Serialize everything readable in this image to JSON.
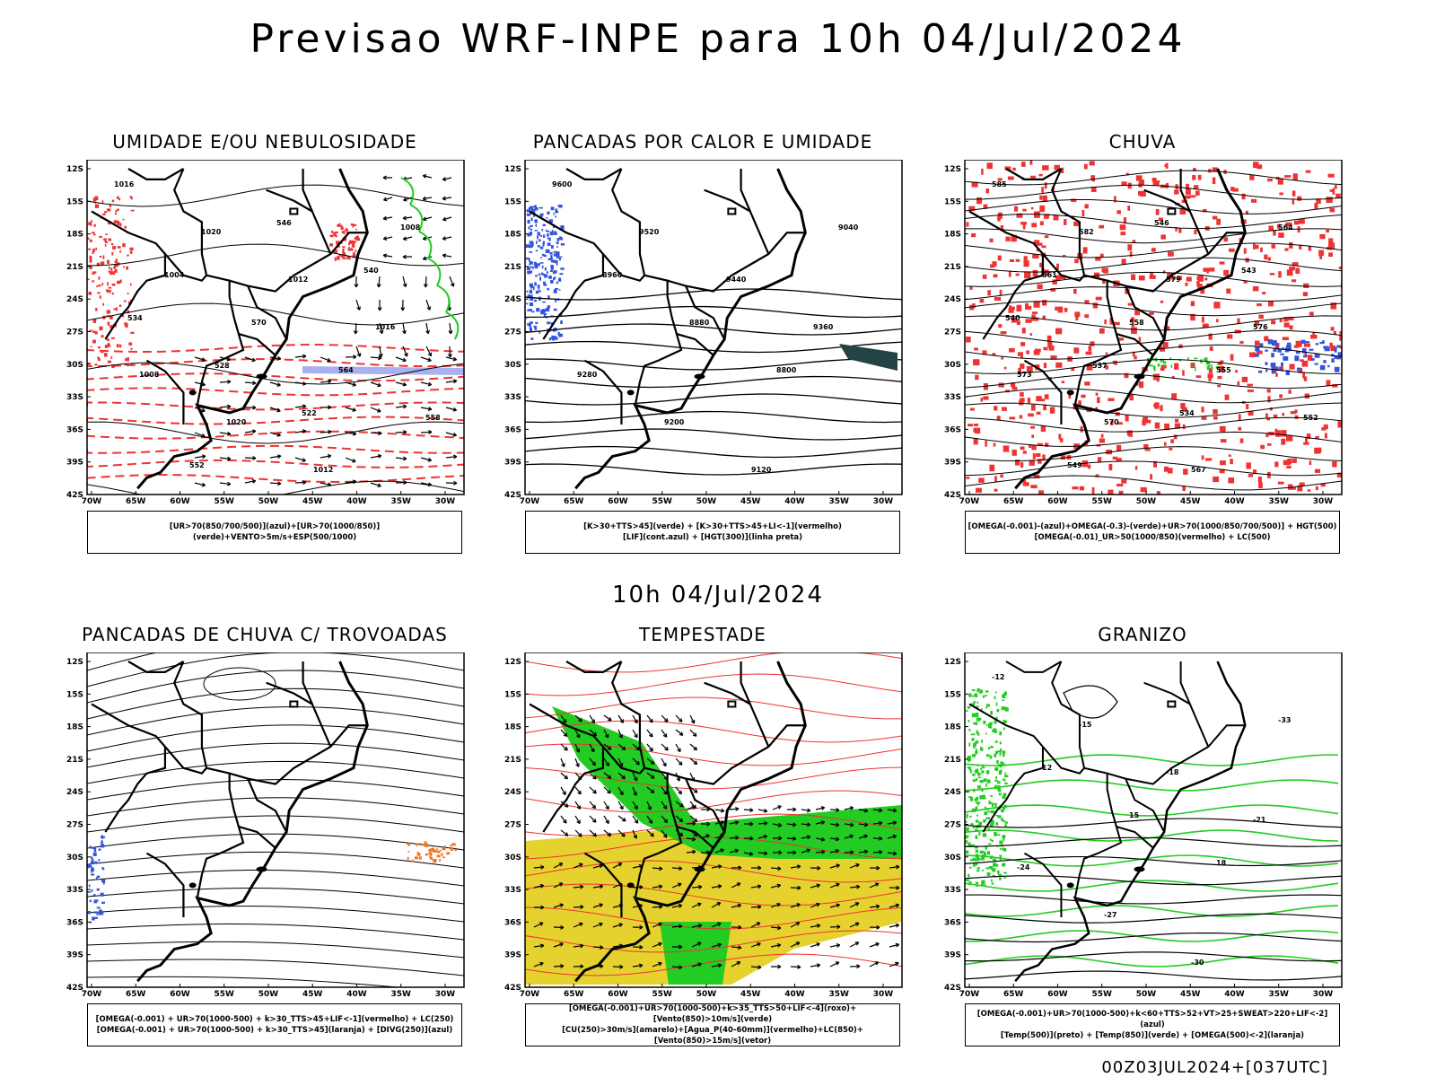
{
  "main_title": "Previsao WRF-INPE  para 10h 04/Jul/2024",
  "mid_title": "10h 04/Jul/2024",
  "footer": "00Z03JUL2024+[037UTC]",
  "lat_labels": [
    "12S",
    "15S",
    "18S",
    "21S",
    "24S",
    "27S",
    "30S",
    "33S",
    "36S",
    "39S",
    "42S"
  ],
  "lon_labels": [
    "70W",
    "65W",
    "60W",
    "55W",
    "50W",
    "45W",
    "40W",
    "35W",
    "30W"
  ],
  "colors": {
    "blue": "#3355dd",
    "green": "#22cc22",
    "red": "#ee3333",
    "yellow": "#e6d22e",
    "orange": "#ee7722",
    "lavender": "#aab0ee"
  },
  "panels": [
    {
      "title": "UMIDADE E/OU NEBULOSIDADE",
      "legend": [
        "[UR>70(850/700/500)](azul)+[UR>70(1000/850)](verde)+VENTO>5m/s+ESP(500/1000)"
      ],
      "contour_labels": [
        "1016",
        "1020",
        "1012",
        "1016",
        "1008",
        "1020",
        "1012",
        "1008",
        "1004",
        "570",
        "564",
        "558",
        "552",
        "546",
        "540",
        "534",
        "528",
        "522"
      ]
    },
    {
      "title": "PANCADAS POR CALOR E UMIDADE",
      "legend": [
        "[K>30+TTS>45](verde) + [K>30+TTS>45+LI<-1](vermelho)",
        "[LIF](cont.azul) + [HGT(300)](linha preta)"
      ],
      "contour_labels": [
        "9600",
        "9520",
        "9440",
        "9360",
        "9280",
        "9200",
        "9120",
        "9040",
        "8960",
        "8880",
        "8800"
      ]
    },
    {
      "title": "CHUVA",
      "legend": [
        "[OMEGA(-0.001)-(azul)+OMEGA(-0.3)-(verde)+UR>70(1000/850/700/500)] + HGT(500)",
        "[OMEGA(-0.01)_UR>50(1000/850)(vermelho) + LC(500)"
      ],
      "contour_labels": [
        "585",
        "582",
        "579",
        "576",
        "573",
        "570",
        "567",
        "564",
        "561",
        "558",
        "555",
        "552",
        "549",
        "546",
        "543",
        "540",
        "537",
        "534"
      ]
    },
    {
      "title": "PANCADAS DE CHUVA C/ TROVOADAS",
      "legend": [
        "[OMEGA(-0.001) + UR>70(1000-500) + k>30_TTS>45+LIF<-1](vermelho) + LC(250)",
        "[OMEGA(-0.001) + UR>70(1000-500) + k>30_TTS>45](laranja) + [DIVG(250)](azul)"
      ]
    },
    {
      "title": "TEMPESTADE",
      "legend": [
        "[OMEGA(-0.001)+UR>70(1000-500)+k>35_TTS>50+LIF<-4](roxo)+[Vento(850)>10m/s](verde)",
        "[CU(250)>30m/s](amarelo)+[Agua_P(40-60mm)](vermelho)+LC(850)+[Vento(850)>15m/s](vetor)"
      ]
    },
    {
      "title": "GRANIZO",
      "legend": [
        "[OMEGA(-0.001)+UR>70(1000-500)+k<60+TTS>52+VT>25+SWEAT>220+LIF<-2](azul)",
        "[Temp(500)](preto) + [Temp(850)](verde) + [OMEGA(500)<-2](laranja)"
      ],
      "contour_labels": [
        "-12",
        "-15",
        "-18",
        "-21",
        "-24",
        "-27",
        "-30",
        "-33",
        "12",
        "15",
        "18"
      ]
    }
  ]
}
